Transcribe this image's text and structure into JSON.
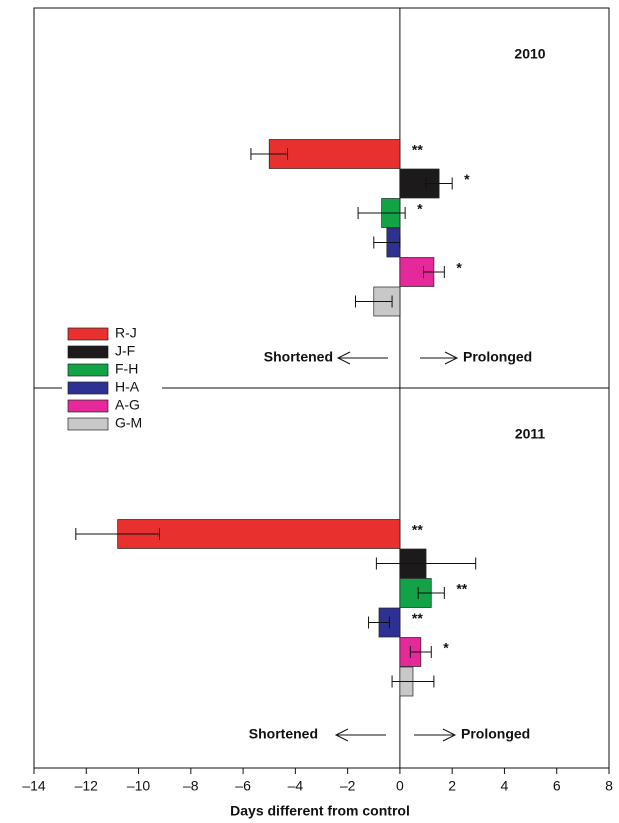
{
  "chart_data": [
    {
      "type": "hbar",
      "title": "2010",
      "categories": [
        "R-J",
        "J-F",
        "F-H",
        "H-A",
        "A-G",
        "G-M"
      ],
      "colors": [
        "#e8312f",
        "#1c1a1b",
        "#12a347",
        "#2e3192",
        "#e6299a",
        "#c8c8c8"
      ],
      "values": [
        -5.0,
        1.5,
        -0.7,
        -0.5,
        1.3,
        -1.0
      ],
      "errors": [
        0.7,
        0.5,
        0.9,
        0.5,
        0.4,
        0.7
      ],
      "value_labels": [
        "**",
        "*",
        "*",
        null,
        "*",
        null
      ],
      "annotations": [
        "Shortened",
        "Prolonged"
      ],
      "xlim": [
        -14,
        8
      ]
    },
    {
      "type": "hbar",
      "title": "2011",
      "categories": [
        "R-J",
        "J-F",
        "F-H",
        "H-A",
        "A-G",
        "G-M"
      ],
      "colors": [
        "#e8312f",
        "#1c1a1b",
        "#12a347",
        "#2e3192",
        "#e6299a",
        "#c8c8c8"
      ],
      "values": [
        -10.8,
        1.0,
        1.2,
        -0.8,
        0.8,
        0.5
      ],
      "errors": [
        1.6,
        1.9,
        0.5,
        0.4,
        0.4,
        0.8
      ],
      "value_labels": [
        "**",
        null,
        "**",
        "**",
        "*",
        null
      ],
      "annotations": [
        "Shortened",
        "Prolonged"
      ],
      "xlim": [
        -14,
        8
      ],
      "xlabel": "Days different from control",
      "xticks": [
        {
          "value": -14,
          "label": "–14"
        },
        {
          "value": -12,
          "label": "–12"
        },
        {
          "value": -10,
          "label": "–10"
        },
        {
          "value": -8,
          "label": "–8"
        },
        {
          "value": -6,
          "label": "–6"
        },
        {
          "value": -4,
          "label": "–4"
        },
        {
          "value": -2,
          "label": "–2"
        },
        0,
        2,
        4,
        6,
        8
      ]
    }
  ]
}
